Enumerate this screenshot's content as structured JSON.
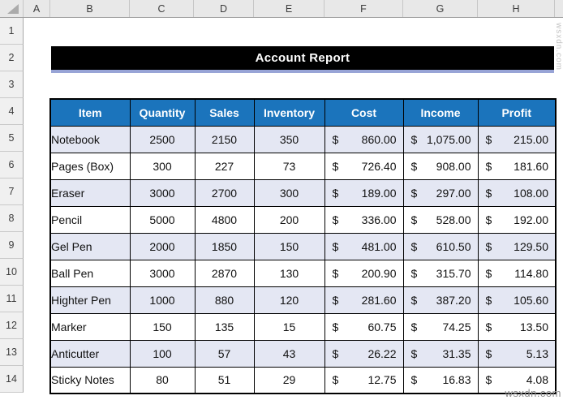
{
  "excel": {
    "column_letters": [
      "A",
      "B",
      "C",
      "D",
      "E",
      "F",
      "G",
      "H"
    ],
    "row_numbers": [
      "1",
      "2",
      "3",
      "4",
      "5",
      "6",
      "7",
      "8",
      "9",
      "10",
      "11",
      "12",
      "13",
      "14"
    ]
  },
  "title_banner": {
    "text": "Account Report"
  },
  "table": {
    "headers": [
      "Item",
      "Quantity",
      "Sales",
      "Inventory",
      "Cost",
      "Income",
      "Profit"
    ],
    "currency_symbol": "$",
    "rows": [
      {
        "item": "Notebook",
        "quantity": "2500",
        "sales": "2150",
        "inventory": "350",
        "cost": "860.00",
        "income": "1,075.00",
        "profit": "215.00"
      },
      {
        "item": "Pages (Box)",
        "quantity": "300",
        "sales": "227",
        "inventory": "73",
        "cost": "726.40",
        "income": "908.00",
        "profit": "181.60"
      },
      {
        "item": "Eraser",
        "quantity": "3000",
        "sales": "2700",
        "inventory": "300",
        "cost": "189.00",
        "income": "297.00",
        "profit": "108.00"
      },
      {
        "item": "Pencil",
        "quantity": "5000",
        "sales": "4800",
        "inventory": "200",
        "cost": "336.00",
        "income": "528.00",
        "profit": "192.00"
      },
      {
        "item": "Gel Pen",
        "quantity": "2000",
        "sales": "1850",
        "inventory": "150",
        "cost": "481.00",
        "income": "610.50",
        "profit": "129.50"
      },
      {
        "item": "Ball Pen",
        "quantity": "3000",
        "sales": "2870",
        "inventory": "130",
        "cost": "200.90",
        "income": "315.70",
        "profit": "114.80"
      },
      {
        "item": "Highter Pen",
        "quantity": "1000",
        "sales": "880",
        "inventory": "120",
        "cost": "281.60",
        "income": "387.20",
        "profit": "105.60"
      },
      {
        "item": "Marker",
        "quantity": "150",
        "sales": "135",
        "inventory": "15",
        "cost": "60.75",
        "income": "74.25",
        "profit": "13.50"
      },
      {
        "item": "Anticutter",
        "quantity": "100",
        "sales": "57",
        "inventory": "43",
        "cost": "26.22",
        "income": "31.35",
        "profit": "5.13"
      },
      {
        "item": "Sticky Notes",
        "quantity": "80",
        "sales": "51",
        "inventory": "29",
        "cost": "12.75",
        "income": "16.83",
        "profit": "4.08"
      }
    ]
  },
  "watermarks": {
    "bottom_right": "wsxdn.com",
    "right_edge": "wsxdn.com"
  },
  "colors": {
    "header_blue": "#1B74BC",
    "row_alt": "#E4E7F3",
    "banner_black": "#000000",
    "banner_underline": "#98A4D6"
  }
}
